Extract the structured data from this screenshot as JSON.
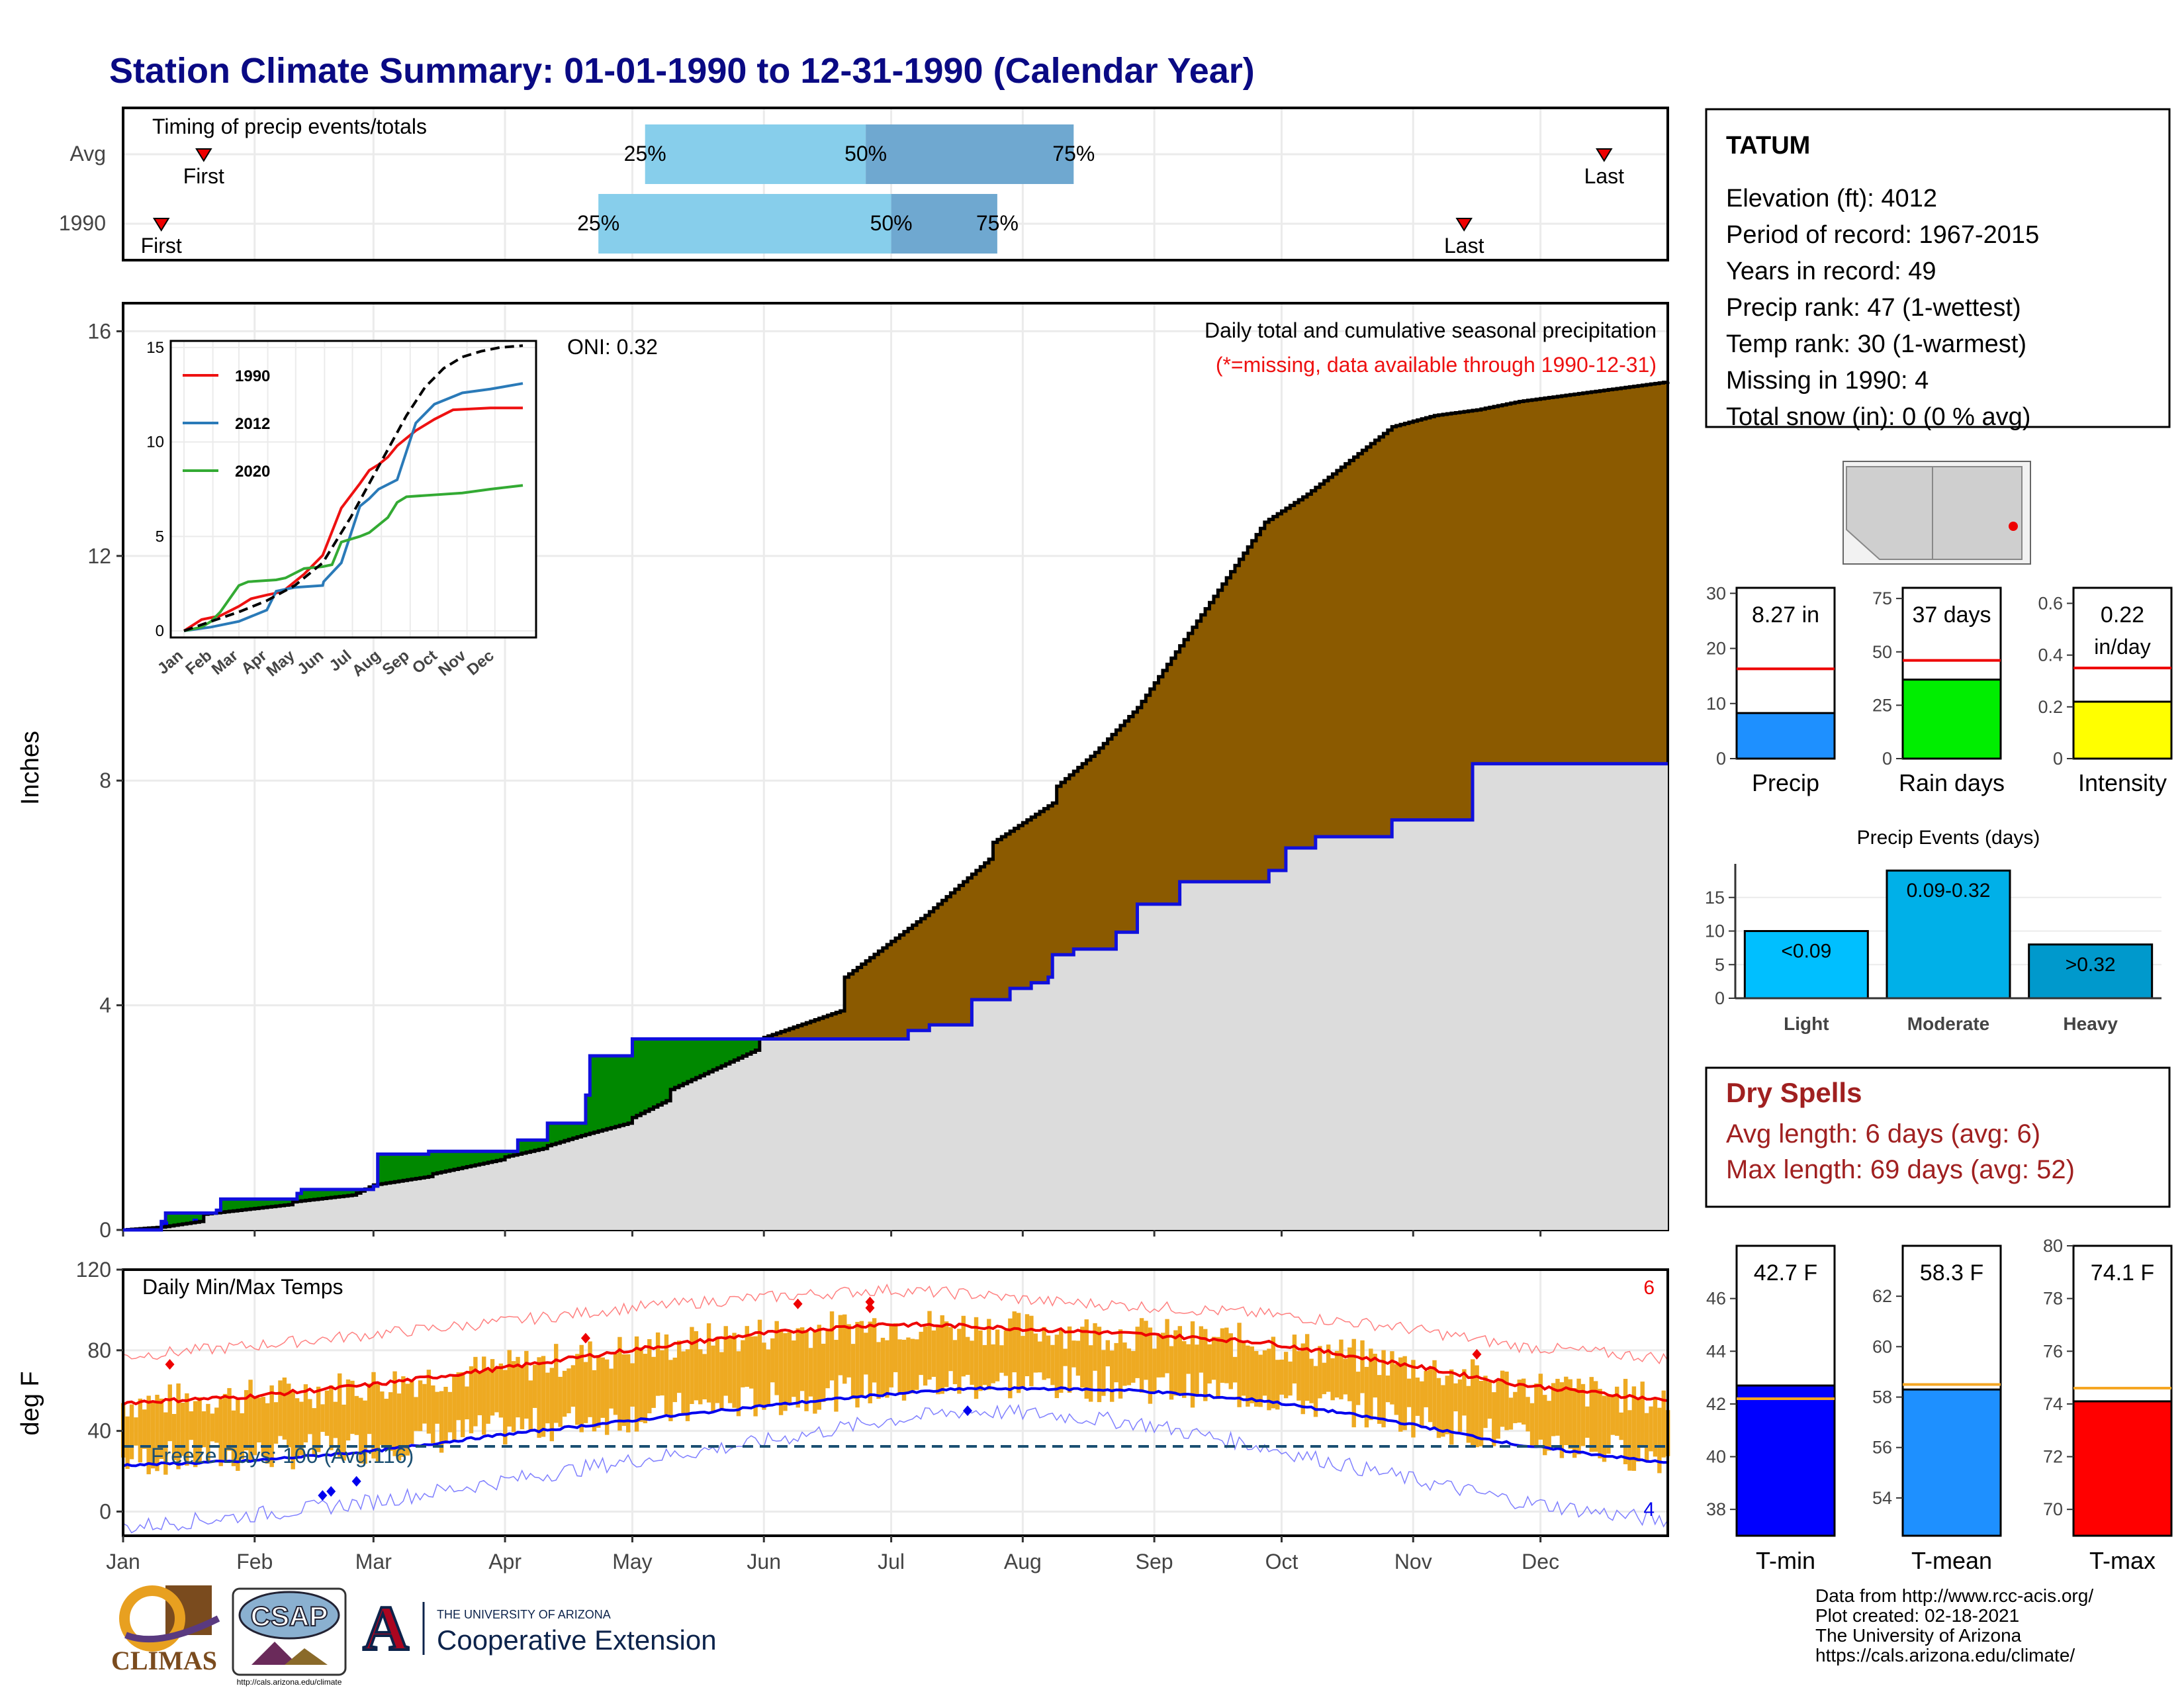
{
  "title": "Station Climate Summary: 01-01-1990 to 12-31-1990 (Calendar Year)",
  "months": [
    "Jan",
    "Feb",
    "Mar",
    "Apr",
    "May",
    "Jun",
    "Jul",
    "Aug",
    "Sep",
    "Oct",
    "Nov",
    "Dec"
  ],
  "colors": {
    "title": "#0a0a84",
    "precip_brown": "#8b5a00",
    "precip_green": "#008800",
    "avg_line": "#1010dd",
    "dry_red": "#a02020",
    "q_light": "#87ceeb",
    "q_dark": "#6fa8d0"
  },
  "timing": {
    "label": "Timing of precip events/totals",
    "rows": [
      {
        "name": "Avg",
        "first_doy": 20,
        "last_doy": 350,
        "q25_doy": 124,
        "q50_doy": 176,
        "q75_doy": 225,
        "first_label": "First",
        "last_label": "Last",
        "q25_label": "25%",
        "q50_label": "50%",
        "q75_label": "75%"
      },
      {
        "name": "1990",
        "first_doy": 10,
        "last_doy": 317,
        "q25_doy": 113,
        "q50_doy": 182,
        "q75_doy": 207,
        "first_label": "First",
        "last_label": "Last",
        "q25_label": "25%",
        "q50_label": "50%",
        "q75_label": "75%"
      }
    ]
  },
  "precip_panel": {
    "ylabel": "Inches",
    "title": "Daily total and cumulative seasonal precipitation",
    "missing_note": "(*=missing, data available through 1990-12-31)",
    "oni": "ONI: 0.32",
    "corner_count": "6",
    "ylim": [
      0,
      16.5
    ],
    "yticks": [
      0,
      4,
      8,
      12,
      16
    ]
  },
  "chart_data": [
    {
      "name": "cumulative_precip",
      "type": "area",
      "x_unit": "day of year",
      "series": [
        {
          "name": "1990 cumulative",
          "x": [
            1,
            10,
            19,
            20,
            40,
            41,
            55,
            60,
            73,
            74,
            90,
            91,
            100,
            101,
            110,
            120,
            121,
            129,
            130,
            150,
            151,
            170,
            171,
            190,
            205,
            206,
            220,
            221,
            230,
            240,
            250,
            260,
            270,
            280,
            290,
            300,
            310,
            320,
            330,
            340,
            350,
            365
          ],
          "values": [
            0,
            0.05,
            0.15,
            0.28,
            0.45,
            0.5,
            0.62,
            0.8,
            0.95,
            1.0,
            1.25,
            1.3,
            1.45,
            1.5,
            1.7,
            1.9,
            2.0,
            2.3,
            2.5,
            3.2,
            3.4,
            3.9,
            4.5,
            5.6,
            6.6,
            6.9,
            7.6,
            7.9,
            8.5,
            9.3,
            10.4,
            11.5,
            12.6,
            13.1,
            13.7,
            14.3,
            14.5,
            14.6,
            14.75,
            14.85,
            14.95,
            15.1
          ]
        },
        {
          "name": "Average cumulative",
          "x": [
            1,
            10,
            11,
            23,
            24,
            42,
            43,
            60,
            61,
            72,
            73,
            93,
            94,
            100,
            101,
            110,
            111,
            120,
            121,
            150,
            151,
            175,
            185,
            186,
            190,
            191,
            200,
            201,
            202,
            210,
            215,
            219,
            220,
            225,
            235,
            240,
            250,
            255,
            270,
            271,
            275,
            281,
            282,
            300,
            318,
            319,
            365
          ],
          "values": [
            0,
            0.15,
            0.3,
            0.35,
            0.55,
            0.65,
            0.72,
            0.78,
            1.35,
            1.35,
            1.4,
            1.4,
            1.6,
            1.6,
            1.9,
            2.4,
            3.1,
            3.1,
            3.4,
            3.4,
            3.4,
            3.4,
            3.4,
            3.55,
            3.55,
            3.65,
            3.65,
            4.1,
            4.1,
            4.3,
            4.4,
            4.5,
            4.9,
            5.0,
            5.3,
            5.8,
            6.2,
            6.2,
            6.2,
            6.4,
            6.8,
            6.8,
            7.0,
            7.3,
            7.3,
            8.3,
            8.3
          ]
        }
      ],
      "ylim": [
        0,
        16.5
      ]
    },
    {
      "name": "daily_precip",
      "type": "bar",
      "x_unit": "day of year",
      "x": [
        11,
        18,
        19,
        39,
        42,
        48,
        60,
        70,
        74,
        89,
        100,
        108,
        112,
        113,
        114,
        122,
        131,
        155,
        167,
        175,
        195,
        200,
        205,
        210,
        212,
        213,
        214,
        215,
        216,
        218,
        220,
        223,
        230,
        234,
        235,
        237,
        240,
        248,
        255,
        262,
        275,
        276,
        277,
        282,
        316,
        317,
        320
      ],
      "values": [
        0.15,
        0.2,
        0.08,
        0.05,
        0.05,
        0.05,
        0.45,
        0.1,
        0.08,
        0.25,
        0.05,
        0.1,
        0.15,
        0.25,
        0.3,
        0.28,
        0.05,
        0.05,
        0.05,
        0.05,
        0.05,
        0.05,
        0.08,
        0.2,
        0.15,
        0.25,
        0.6,
        0.12,
        0.05,
        0.1,
        0.15,
        0.05,
        0.1,
        0.05,
        0.25,
        0.05,
        0.05,
        0.05,
        0.05,
        0.05,
        0.12,
        0.05,
        0.05,
        0.3,
        0.6,
        0.35,
        0.1
      ],
      "ylim": [
        0,
        16.5
      ]
    },
    {
      "name": "inset_cumulative",
      "type": "line",
      "x_unit": "day of year",
      "ylim": [
        0,
        15
      ],
      "yticks": [
        0,
        5,
        10,
        15
      ],
      "series": [
        {
          "name": "1990",
          "x": [
            1,
            20,
            40,
            60,
            73,
            90,
            100,
            110,
            130,
            150,
            170,
            190,
            200,
            210,
            220,
            230,
            240,
            250,
            270,
            290,
            330,
            365
          ],
          "values": [
            0,
            0.6,
            0.8,
            1.3,
            1.7,
            1.9,
            2.0,
            2.2,
            3.0,
            4.0,
            6.5,
            7.8,
            8.5,
            8.8,
            9.2,
            9.8,
            10.2,
            10.6,
            11.2,
            11.7,
            11.8,
            11.8
          ]
        },
        {
          "name": "2012",
          "x": [
            1,
            30,
            60,
            90,
            100,
            120,
            150,
            151,
            170,
            190,
            200,
            210,
            230,
            240,
            250,
            270,
            300,
            330,
            365
          ],
          "values": [
            0,
            0.2,
            0.5,
            1.1,
            2.1,
            2.3,
            2.4,
            2.6,
            3.6,
            6.6,
            7.0,
            7.5,
            8.0,
            9.5,
            11.0,
            12.0,
            12.6,
            12.8,
            13.1
          ]
        },
        {
          "name": "2020",
          "x": [
            1,
            20,
            30,
            40,
            60,
            70,
            100,
            110,
            130,
            150,
            160,
            170,
            190,
            200,
            220,
            230,
            240,
            270,
            300,
            330,
            365
          ],
          "values": [
            0,
            0.2,
            0.5,
            1.0,
            2.4,
            2.6,
            2.7,
            2.8,
            3.3,
            3.4,
            3.5,
            4.7,
            5.0,
            5.2,
            6.0,
            6.8,
            7.1,
            7.2,
            7.3,
            7.5,
            7.7
          ]
        },
        {
          "name": "Average",
          "x": [
            1,
            30,
            60,
            90,
            120,
            150,
            180,
            200,
            220,
            240,
            260,
            280,
            300,
            320,
            340,
            365
          ],
          "values": [
            0,
            0.5,
            1.0,
            1.6,
            2.4,
            3.6,
            6.0,
            7.8,
            9.6,
            11.4,
            12.9,
            13.9,
            14.5,
            14.8,
            15.0,
            15.1
          ]
        }
      ]
    },
    {
      "name": "station_bars",
      "type": "bar",
      "panels": [
        {
          "label": "Precip",
          "value": 8.27,
          "value_label": "8.27 in",
          "avg": 16.3,
          "ylim": [
            0,
            31
          ],
          "yticks": [
            0,
            10,
            20,
            30
          ],
          "color": "#1e90ff"
        },
        {
          "label": "Rain days",
          "value": 37,
          "value_label": "37 days",
          "avg": 46,
          "ylim": [
            0,
            80
          ],
          "yticks": [
            0,
            25,
            50,
            75
          ],
          "color": "#00ee00"
        },
        {
          "label": "Intensity",
          "value": 0.22,
          "value_label": "0.22",
          "value_label2": "in/day",
          "avg": 0.35,
          "ylim": [
            0,
            0.66
          ],
          "yticks": [
            0.0,
            0.2,
            0.4,
            0.6
          ],
          "color": "#ffff00"
        }
      ]
    },
    {
      "name": "precip_events",
      "type": "bar",
      "title": "Precip Events (days)",
      "categories": [
        "Light",
        "Moderate",
        "Heavy"
      ],
      "bar_labels": [
        "<0.09",
        "0.09-0.32",
        ">0.32"
      ],
      "values": [
        10,
        19,
        8
      ],
      "ylim": [
        0,
        20
      ],
      "yticks": [
        0,
        5,
        10,
        15
      ]
    },
    {
      "name": "daily_temps",
      "type": "line",
      "title": "Daily Min/Max Temps",
      "ylabel": "deg F",
      "ylim": [
        -12,
        120
      ],
      "yticks": [
        0,
        40,
        80,
        120
      ],
      "freeze_line": 32,
      "freeze_label": "Freeze Days: 100 (Avg:116)",
      "count_hi": "6",
      "count_lo": "4",
      "series": [
        {
          "name": "avg_max",
          "x": [
            1,
            30,
            60,
            90,
            120,
            150,
            180,
            200,
            220,
            240,
            270,
            300,
            330,
            365
          ],
          "values": [
            54,
            57,
            63,
            71,
            80,
            88,
            93,
            92,
            90,
            88,
            84,
            74,
            63,
            55
          ]
        },
        {
          "name": "avg_min",
          "x": [
            1,
            30,
            60,
            90,
            120,
            150,
            180,
            200,
            220,
            240,
            270,
            300,
            330,
            365
          ],
          "values": [
            23,
            25,
            30,
            38,
            45,
            52,
            58,
            61,
            61,
            60,
            55,
            45,
            33,
            24
          ]
        },
        {
          "name": "record_max",
          "x": [
            1,
            30,
            60,
            90,
            120,
            150,
            180,
            200,
            220,
            240,
            270,
            300,
            330,
            365
          ],
          "values": [
            77,
            82,
            88,
            94,
            101,
            106,
            110,
            108,
            104,
            102,
            98,
            92,
            82,
            76
          ]
        },
        {
          "name": "record_min",
          "x": [
            1,
            30,
            60,
            90,
            120,
            150,
            180,
            200,
            220,
            240,
            270,
            300,
            330,
            365
          ],
          "values": [
            -8,
            -2,
            5,
            15,
            25,
            34,
            45,
            50,
            48,
            44,
            32,
            18,
            5,
            -5
          ]
        }
      ]
    },
    {
      "name": "temp_bars",
      "type": "bar",
      "panels": [
        {
          "label": "T-min",
          "value": 42.7,
          "value_label": "42.7 F",
          "avg": 42.2,
          "ylim": [
            37,
            48
          ],
          "yticks": [
            38,
            40,
            42,
            44,
            46
          ],
          "color": "#0000ff"
        },
        {
          "label": "T-mean",
          "value": 58.3,
          "value_label": "58.3 F",
          "avg": 58.5,
          "ylim": [
            52.5,
            64
          ],
          "yticks": [
            54,
            56,
            58,
            60,
            62
          ],
          "color": "#1e90ff"
        },
        {
          "label": "T-max",
          "value": 74.1,
          "value_label": "74.1 F",
          "avg": 74.6,
          "ylim": [
            69,
            80
          ],
          "yticks": [
            70,
            72,
            74,
            76,
            78,
            80
          ],
          "color": "#ff0000"
        }
      ]
    }
  ],
  "station": {
    "name": "TATUM",
    "lines": [
      "Elevation (ft): 4012",
      "Period of record: 1967-2015",
      "Years in record: 49",
      "Precip rank: 47 (1-wettest)",
      "Temp rank: 30 (1-warmest)",
      "Missing in 1990: 4",
      "Total snow (in): 0 (0 % avg)"
    ]
  },
  "dry_spells": {
    "title": "Dry Spells",
    "avg_line": "Avg length: 6 days (avg: 6)",
    "max_line": "Max length: 69 days (avg: 52)"
  },
  "footer": {
    "lines": [
      "Data from http://www.rcc-acis.org/",
      "Plot created: 02-18-2021",
      "The University of Arizona",
      "https://cals.arizona.edu/climate/"
    ],
    "logos": {
      "climas": "CLIMAS",
      "csap": "CSAP",
      "csap_url": "http://cals.arizona.edu/climate",
      "ua_letter": "A",
      "ua_small": "THE UNIVERSITY OF ARIZONA",
      "ua_big": "Cooperative Extension"
    }
  },
  "icons": [
    "triangle-marker-icon",
    "state-map-icon",
    "missing-star-icon"
  ]
}
